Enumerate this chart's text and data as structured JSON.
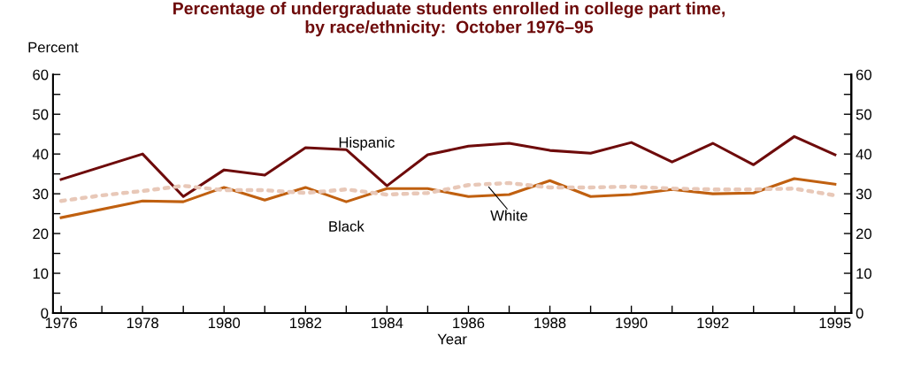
{
  "chart_data": {
    "type": "line",
    "title": "Percentage of undergraduate students enrolled in college part time,\nby race/ethnicity:  October 1976–95",
    "xlabel": "Year",
    "ylabel": "Percent",
    "x": [
      1976,
      1977,
      1978,
      1979,
      1980,
      1981,
      1982,
      1983,
      1984,
      1985,
      1986,
      1987,
      1988,
      1989,
      1990,
      1991,
      1992,
      1993,
      1994,
      1995
    ],
    "series": [
      {
        "name": "Hispanic",
        "color": "#6e0b0b",
        "line_style": "solid",
        "values": [
          33.6,
          null,
          40,
          29.3,
          36,
          34.7,
          41.6,
          41.1,
          32,
          39.8,
          42,
          42.7,
          40.9,
          40.2,
          42.9,
          38,
          42.7,
          37.3,
          44.4,
          39.8
        ]
      },
      {
        "name": "Black",
        "color": "#c06010",
        "line_style": "solid",
        "values": [
          24,
          null,
          28.2,
          28,
          31.6,
          28.4,
          31.6,
          28,
          31.3,
          31.3,
          29.3,
          29.8,
          33.3,
          29.3,
          29.8,
          31.1,
          30,
          30.2,
          33.8,
          32.4
        ]
      },
      {
        "name": "White",
        "color": "#e8c8b8",
        "line_style": "dotted",
        "values": [
          28.2,
          29.6,
          30.7,
          32,
          30.9,
          30.9,
          30.2,
          31.1,
          29.8,
          30.2,
          32.2,
          32.7,
          31.6,
          31.6,
          31.8,
          31.3,
          31.1,
          31.1,
          31.3,
          29.6
        ]
      }
    ],
    "xlim": [
      1975.8,
      1995.4
    ],
    "xticks": [
      1976,
      {
        "value": 1977,
        "label": null
      },
      1978,
      {
        "value": 1979,
        "label": null
      },
      1980,
      {
        "value": 1981,
        "label": null
      },
      1982,
      {
        "value": 1983,
        "label": null
      },
      1984,
      {
        "value": 1985,
        "label": null
      },
      1986,
      {
        "value": 1987,
        "label": null
      },
      1988,
      {
        "value": 1989,
        "label": null
      },
      1990,
      {
        "value": 1991,
        "label": null
      },
      1992,
      {
        "value": 1993,
        "label": null
      },
      {
        "value": 1994,
        "label": null
      },
      1995
    ],
    "ylim": [
      0,
      60
    ],
    "yticks": [
      0,
      {
        "value": 5,
        "label": null
      },
      10,
      {
        "value": 15,
        "label": null
      },
      20,
      {
        "value": 25,
        "label": null
      },
      30,
      {
        "value": 35,
        "label": null
      },
      40,
      {
        "value": 45,
        "label": null
      },
      50,
      {
        "value": 55,
        "label": null
      },
      60
    ],
    "y2lim": [
      0,
      60
    ],
    "y2ticks": [
      0,
      {
        "value": 5,
        "label": null
      },
      10,
      {
        "value": 15,
        "label": null
      },
      20,
      {
        "value": 25,
        "label": null
      },
      30,
      {
        "value": 35,
        "label": null
      },
      40,
      {
        "value": 45,
        "label": null
      },
      50,
      {
        "value": 55,
        "label": null
      },
      60
    ],
    "grid": false,
    "legend": false
  }
}
